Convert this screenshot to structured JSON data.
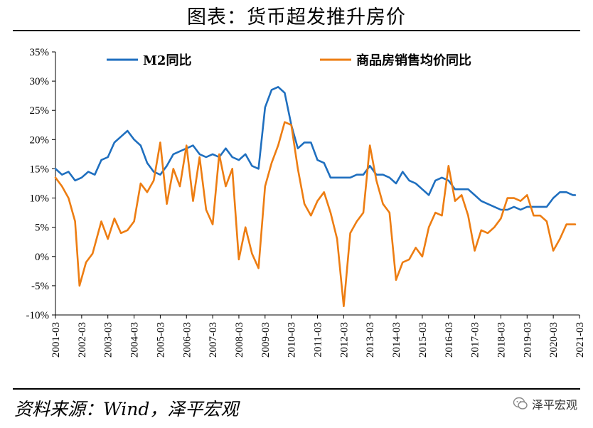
{
  "title": "图表：货币超发推升房价",
  "source": "资料来源：Wind，泽平宏观",
  "brand": {
    "name": "泽平宏观",
    "icon": "wechat-icon"
  },
  "colors": {
    "m2": "#1f6fbf",
    "price": "#ed7d12"
  },
  "chart_data": {
    "type": "line",
    "title": "",
    "ylim": [
      -10,
      35
    ],
    "y_ticks": [
      -10,
      -5,
      0,
      5,
      10,
      15,
      20,
      25,
      30,
      35
    ],
    "y_tick_labels": [
      "-10%",
      "-5%",
      "0%",
      "5%",
      "10%",
      "15%",
      "20%",
      "25%",
      "30%",
      "35%"
    ],
    "y_unit": "%",
    "x_ticks": [
      "2001-03",
      "2002-03",
      "2003-03",
      "2004-03",
      "2005-03",
      "2006-03",
      "2007-03",
      "2008-03",
      "2009-03",
      "2010-03",
      "2011-03",
      "2012-03",
      "2013-03",
      "2014-03",
      "2015-03",
      "2016-03",
      "2017-03",
      "2018-03",
      "2019-03",
      "2020-03",
      "2021-03"
    ],
    "legend_position": "top",
    "grid": false,
    "series": [
      {
        "name": "M2同比",
        "points": [
          [
            "2001-03",
            15.0
          ],
          [
            "2001-06",
            14.0
          ],
          [
            "2001-09",
            14.5
          ],
          [
            "2001-12",
            13.0
          ],
          [
            "2002-03",
            13.5
          ],
          [
            "2002-06",
            14.5
          ],
          [
            "2002-09",
            14.0
          ],
          [
            "2002-12",
            16.5
          ],
          [
            "2003-03",
            17.0
          ],
          [
            "2003-06",
            19.5
          ],
          [
            "2003-09",
            20.5
          ],
          [
            "2003-12",
            21.5
          ],
          [
            "2004-03",
            20.0
          ],
          [
            "2004-06",
            19.0
          ],
          [
            "2004-09",
            16.0
          ],
          [
            "2004-12",
            14.5
          ],
          [
            "2005-03",
            14.0
          ],
          [
            "2005-06",
            15.5
          ],
          [
            "2005-09",
            17.5
          ],
          [
            "2005-12",
            18.0
          ],
          [
            "2006-03",
            18.5
          ],
          [
            "2006-06",
            19.0
          ],
          [
            "2006-09",
            17.5
          ],
          [
            "2006-12",
            17.0
          ],
          [
            "2007-03",
            17.5
          ],
          [
            "2007-06",
            17.0
          ],
          [
            "2007-09",
            18.5
          ],
          [
            "2007-12",
            17.0
          ],
          [
            "2008-03",
            16.5
          ],
          [
            "2008-06",
            17.5
          ],
          [
            "2008-09",
            15.5
          ],
          [
            "2008-12",
            15.0
          ],
          [
            "2009-03",
            25.5
          ],
          [
            "2009-06",
            28.5
          ],
          [
            "2009-09",
            29.0
          ],
          [
            "2009-12",
            28.0
          ],
          [
            "2010-03",
            22.5
          ],
          [
            "2010-06",
            18.5
          ],
          [
            "2010-09",
            19.5
          ],
          [
            "2010-12",
            19.5
          ],
          [
            "2011-03",
            16.5
          ],
          [
            "2011-06",
            16.0
          ],
          [
            "2011-09",
            13.5
          ],
          [
            "2011-12",
            13.5
          ],
          [
            "2012-03",
            13.5
          ],
          [
            "2012-06",
            13.5
          ],
          [
            "2012-09",
            14.0
          ],
          [
            "2012-12",
            14.0
          ],
          [
            "2013-03",
            15.5
          ],
          [
            "2013-06",
            14.0
          ],
          [
            "2013-09",
            14.0
          ],
          [
            "2013-12",
            13.5
          ],
          [
            "2014-03",
            12.5
          ],
          [
            "2014-06",
            14.5
          ],
          [
            "2014-09",
            13.0
          ],
          [
            "2014-12",
            12.5
          ],
          [
            "2015-03",
            11.5
          ],
          [
            "2015-06",
            10.5
          ],
          [
            "2015-09",
            13.0
          ],
          [
            "2015-12",
            13.5
          ],
          [
            "2016-03",
            13.0
          ],
          [
            "2016-06",
            11.5
          ],
          [
            "2016-09",
            11.5
          ],
          [
            "2016-12",
            11.5
          ],
          [
            "2017-03",
            10.5
          ],
          [
            "2017-06",
            9.5
          ],
          [
            "2017-09",
            9.0
          ],
          [
            "2017-12",
            8.5
          ],
          [
            "2018-03",
            8.0
          ],
          [
            "2018-06",
            8.0
          ],
          [
            "2018-09",
            8.5
          ],
          [
            "2018-12",
            8.0
          ],
          [
            "2019-03",
            8.5
          ],
          [
            "2019-06",
            8.5
          ],
          [
            "2019-09",
            8.5
          ],
          [
            "2019-12",
            8.5
          ],
          [
            "2020-03",
            10.0
          ],
          [
            "2020-06",
            11.0
          ],
          [
            "2020-09",
            11.0
          ],
          [
            "2020-12",
            10.5
          ],
          [
            "2021-01",
            10.5
          ]
        ]
      },
      {
        "name": "商品房销售均价同比",
        "points": [
          [
            "2001-03",
            13.5
          ],
          [
            "2001-06",
            12.0
          ],
          [
            "2001-09",
            10.0
          ],
          [
            "2001-12",
            6.0
          ],
          [
            "2002-02",
            -5.0
          ],
          [
            "2002-05",
            -1.0
          ],
          [
            "2002-08",
            0.5
          ],
          [
            "2002-12",
            6.0
          ],
          [
            "2003-03",
            3.0
          ],
          [
            "2003-06",
            6.5
          ],
          [
            "2003-09",
            4.0
          ],
          [
            "2003-12",
            4.5
          ],
          [
            "2004-03",
            6.0
          ],
          [
            "2004-06",
            12.5
          ],
          [
            "2004-09",
            11.0
          ],
          [
            "2004-12",
            13.0
          ],
          [
            "2005-03",
            19.5
          ],
          [
            "2005-06",
            9.0
          ],
          [
            "2005-09",
            15.0
          ],
          [
            "2005-12",
            12.0
          ],
          [
            "2006-03",
            19.0
          ],
          [
            "2006-06",
            9.5
          ],
          [
            "2006-09",
            17.0
          ],
          [
            "2006-12",
            8.0
          ],
          [
            "2007-03",
            5.5
          ],
          [
            "2007-06",
            17.5
          ],
          [
            "2007-09",
            12.0
          ],
          [
            "2007-12",
            15.0
          ],
          [
            "2008-03",
            -0.5
          ],
          [
            "2008-06",
            5.0
          ],
          [
            "2008-09",
            0.5
          ],
          [
            "2008-12",
            -2.0
          ],
          [
            "2009-03",
            12.0
          ],
          [
            "2009-06",
            16.0
          ],
          [
            "2009-09",
            19.0
          ],
          [
            "2009-12",
            23.0
          ],
          [
            "2010-03",
            22.5
          ],
          [
            "2010-06",
            15.0
          ],
          [
            "2010-09",
            9.0
          ],
          [
            "2010-12",
            7.0
          ],
          [
            "2011-03",
            9.5
          ],
          [
            "2011-06",
            11.0
          ],
          [
            "2011-09",
            7.5
          ],
          [
            "2011-12",
            3.0
          ],
          [
            "2012-03",
            -8.5
          ],
          [
            "2012-06",
            4.0
          ],
          [
            "2012-09",
            6.0
          ],
          [
            "2012-12",
            7.5
          ],
          [
            "2013-03",
            19.0
          ],
          [
            "2013-06",
            13.0
          ],
          [
            "2013-09",
            9.0
          ],
          [
            "2013-12",
            7.5
          ],
          [
            "2014-03",
            -4.0
          ],
          [
            "2014-06",
            -1.0
          ],
          [
            "2014-09",
            -0.5
          ],
          [
            "2014-12",
            1.5
          ],
          [
            "2015-03",
            0.0
          ],
          [
            "2015-06",
            5.0
          ],
          [
            "2015-09",
            7.5
          ],
          [
            "2015-12",
            7.0
          ],
          [
            "2016-03",
            15.5
          ],
          [
            "2016-06",
            9.5
          ],
          [
            "2016-09",
            10.5
          ],
          [
            "2016-12",
            7.0
          ],
          [
            "2017-03",
            1.0
          ],
          [
            "2017-06",
            4.5
          ],
          [
            "2017-09",
            4.0
          ],
          [
            "2017-12",
            5.0
          ],
          [
            "2018-03",
            6.5
          ],
          [
            "2018-06",
            10.0
          ],
          [
            "2018-09",
            10.0
          ],
          [
            "2018-12",
            9.5
          ],
          [
            "2019-03",
            10.5
          ],
          [
            "2019-06",
            7.0
          ],
          [
            "2019-09",
            7.0
          ],
          [
            "2019-12",
            6.0
          ],
          [
            "2020-03",
            1.0
          ],
          [
            "2020-06",
            3.0
          ],
          [
            "2020-09",
            5.5
          ],
          [
            "2020-12",
            5.5
          ],
          [
            "2021-01",
            5.5
          ]
        ]
      }
    ]
  }
}
